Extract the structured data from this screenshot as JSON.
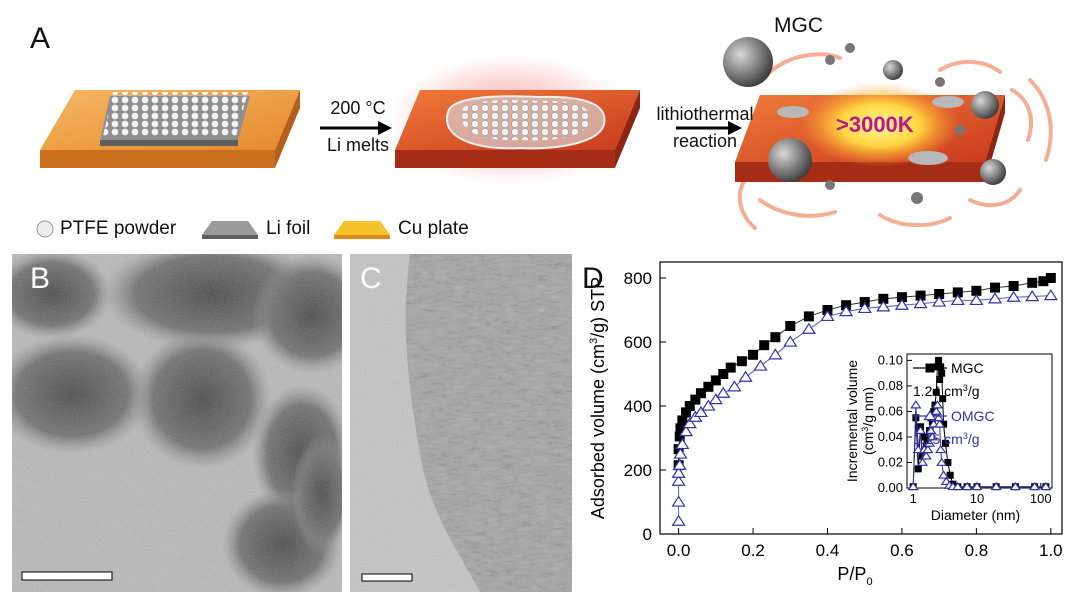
{
  "panels": {
    "a": "A",
    "b": "B",
    "c": "C",
    "d": "D"
  },
  "scheme": {
    "step1_line1": "200 °C",
    "step1_line2": "Li melts",
    "step2_line1": "lithiothermal",
    "step2_line2": "reaction",
    "product_label": "MGC",
    "temperature_label": ">3000K",
    "legend": [
      "PTFE powder",
      "Li foil",
      "Cu plate"
    ],
    "colors": {
      "cu_plate": "#f0a34a",
      "hot_plate": "#e0552e",
      "li_foil": "#9a9a9a",
      "ptfe": "#f2f2f2",
      "temperature_text": "#c0148c"
    }
  },
  "chart_data": [
    {
      "type": "scatter",
      "title": "",
      "xlabel": "P/P",
      "xlabel_sub": "0",
      "ylabel": "Adsorbed volume (cm",
      "ylabel_sup": "3",
      "ylabel_tail": "/g) STP",
      "xlim": [
        -0.05,
        1.03
      ],
      "ylim": [
        0,
        850
      ],
      "x_ticks": [
        "0.0",
        "0.2",
        "0.4",
        "0.6",
        "0.8",
        "1.0"
      ],
      "y_ticks": [
        "0",
        "200",
        "400",
        "600",
        "800"
      ],
      "series": [
        {
          "name": "MGC",
          "marker": "filled-square",
          "color": "#000000",
          "x": [
            0.0,
            0.0,
            0.003,
            0.005,
            0.01,
            0.02,
            0.03,
            0.045,
            0.06,
            0.08,
            0.1,
            0.12,
            0.14,
            0.17,
            0.2,
            0.23,
            0.26,
            0.3,
            0.35,
            0.4,
            0.45,
            0.5,
            0.55,
            0.6,
            0.65,
            0.7,
            0.75,
            0.8,
            0.85,
            0.9,
            0.95,
            0.98,
            1.0
          ],
          "y": [
            215,
            265,
            305,
            330,
            355,
            380,
            400,
            420,
            440,
            460,
            480,
            500,
            520,
            540,
            560,
            590,
            615,
            650,
            680,
            700,
            715,
            725,
            735,
            740,
            745,
            750,
            755,
            760,
            770,
            775,
            785,
            790,
            800
          ]
        },
        {
          "name": "OMGC",
          "marker": "open-triangle",
          "color": "#3333aa",
          "x": [
            0.0,
            0.0,
            0.0,
            0.0,
            0.003,
            0.005,
            0.01,
            0.02,
            0.03,
            0.045,
            0.06,
            0.08,
            0.1,
            0.12,
            0.15,
            0.18,
            0.22,
            0.26,
            0.3,
            0.35,
            0.4,
            0.45,
            0.5,
            0.55,
            0.6,
            0.65,
            0.7,
            0.75,
            0.8,
            0.85,
            0.9,
            0.95,
            1.0
          ],
          "y": [
            40,
            100,
            165,
            190,
            215,
            250,
            280,
            320,
            345,
            365,
            380,
            400,
            420,
            440,
            460,
            490,
            525,
            560,
            600,
            640,
            680,
            695,
            705,
            710,
            715,
            720,
            725,
            730,
            730,
            735,
            740,
            742,
            745
          ]
        }
      ],
      "inset": {
        "type": "line",
        "xlabel": "Diameter (nm)",
        "ylabel_line1": "Incremental volume",
        "ylabel_line2": "(cm",
        "ylabel_line2_sup": "3",
        "ylabel_line2_tail": "/g nm)",
        "x_scale": "log",
        "xlim": [
          0.8,
          150
        ],
        "ylim": [
          0,
          0.105
        ],
        "x_ticks": [
          "1",
          "10",
          "100"
        ],
        "y_ticks": [
          "0.00",
          "0.02",
          "0.04",
          "0.06",
          "0.08",
          "0.10"
        ],
        "series": [
          {
            "name": "MGC",
            "value_label": "1.24 cm",
            "value_sup": "3",
            "value_tail": "/g",
            "marker": "filled-square",
            "color": "#000000",
            "x": [
              1.0,
              1.1,
              1.2,
              1.3,
              1.4,
              1.5,
              1.6,
              1.7,
              1.8,
              1.9,
              2.0,
              2.1,
              2.2,
              2.3,
              2.4,
              2.5,
              2.6,
              2.7,
              2.8,
              2.9,
              3.0,
              3.2,
              3.5,
              3.8,
              4.2,
              5,
              7,
              10,
              20,
              40,
              80,
              120
            ],
            "y": [
              0.001,
              0.055,
              0.015,
              0.048,
              0.025,
              0.04,
              0.03,
              0.035,
              0.045,
              0.055,
              0.052,
              0.06,
              0.065,
              0.075,
              0.095,
              0.1,
              0.085,
              0.095,
              0.09,
              0.07,
              0.05,
              0.035,
              0.02,
              0.01,
              0.003,
              0.001,
              0.001,
              0.001,
              0.001,
              0.001,
              0.001,
              0.001
            ]
          },
          {
            "name": "OMGC",
            "value_label": "1.15 cm",
            "value_sup": "3",
            "value_tail": "/g",
            "marker": "open-triangle",
            "color": "#3333aa",
            "x": [
              1.0,
              1.1,
              1.2,
              1.3,
              1.4,
              1.5,
              1.6,
              1.7,
              1.8,
              1.9,
              2.0,
              2.1,
              2.2,
              2.3,
              2.4,
              2.5,
              2.6,
              2.7,
              2.8,
              3.0,
              3.3,
              3.7,
              4.2,
              5,
              7,
              10,
              20,
              40,
              80,
              120
            ],
            "y": [
              0.001,
              0.065,
              0.03,
              0.045,
              0.02,
              0.03,
              0.025,
              0.03,
              0.035,
              0.045,
              0.04,
              0.05,
              0.055,
              0.06,
              0.065,
              0.055,
              0.05,
              0.03,
              0.02,
              0.01,
              0.005,
              0.002,
              0.001,
              0.001,
              0.001,
              0.001,
              0.001,
              0.001,
              0.001,
              0.001
            ]
          }
        ]
      }
    }
  ]
}
